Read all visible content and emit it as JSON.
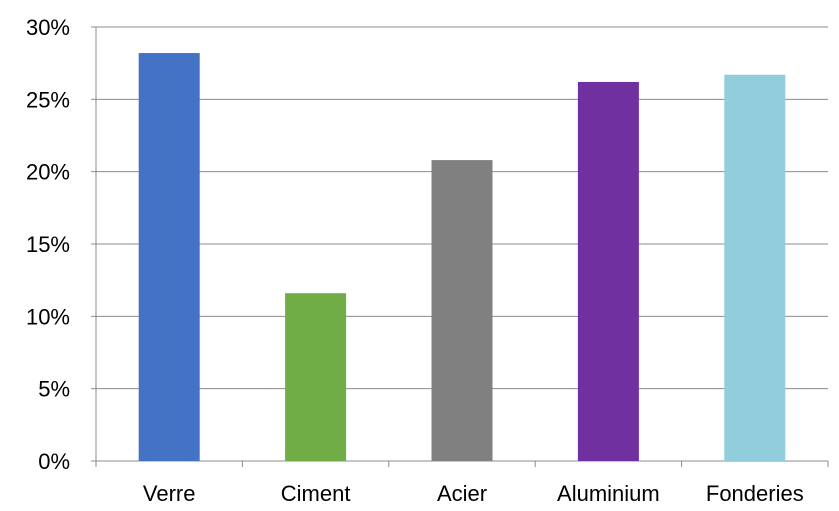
{
  "chart_data": {
    "type": "bar",
    "categories": [
      "Verre",
      "Ciment",
      "Acier",
      "Aluminium",
      "Fonderies"
    ],
    "values": [
      28.2,
      11.6,
      20.8,
      26.2,
      26.7
    ],
    "colors": [
      "#4472C4",
      "#70AD47",
      "#808080",
      "#7030A0",
      "#92CDDC"
    ],
    "y_ticks": [
      "0%",
      "5%",
      "10%",
      "15%",
      "20%",
      "25%",
      "30%"
    ],
    "ylim": [
      0,
      30
    ],
    "y_tick_step": 5,
    "grid": true,
    "legend": "none"
  }
}
